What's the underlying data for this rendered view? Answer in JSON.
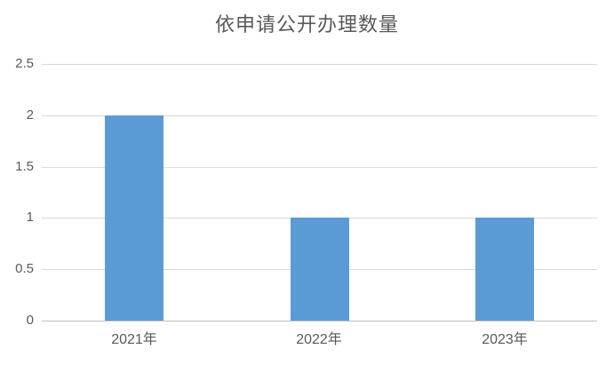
{
  "chart_data": {
    "type": "bar",
    "title": "依申请公开办理数量",
    "categories": [
      "2021年",
      "2022年",
      "2023年"
    ],
    "values": [
      2,
      1,
      1
    ],
    "xlabel": "",
    "ylabel": "",
    "ylim": [
      0,
      2.5
    ],
    "yticks": [
      0,
      0.5,
      1,
      1.5,
      2,
      2.5
    ],
    "ytick_labels": [
      "0",
      "0.5",
      "1",
      "1.5",
      "2",
      "2.5"
    ],
    "grid": true,
    "legend_position": "none",
    "bar_color": "#5B9BD5",
    "gridline_color": "#D9D9D9",
    "axis_line_color": "#BFBFBF",
    "text_color": "#595959",
    "background_color": "#FFFFFF"
  }
}
